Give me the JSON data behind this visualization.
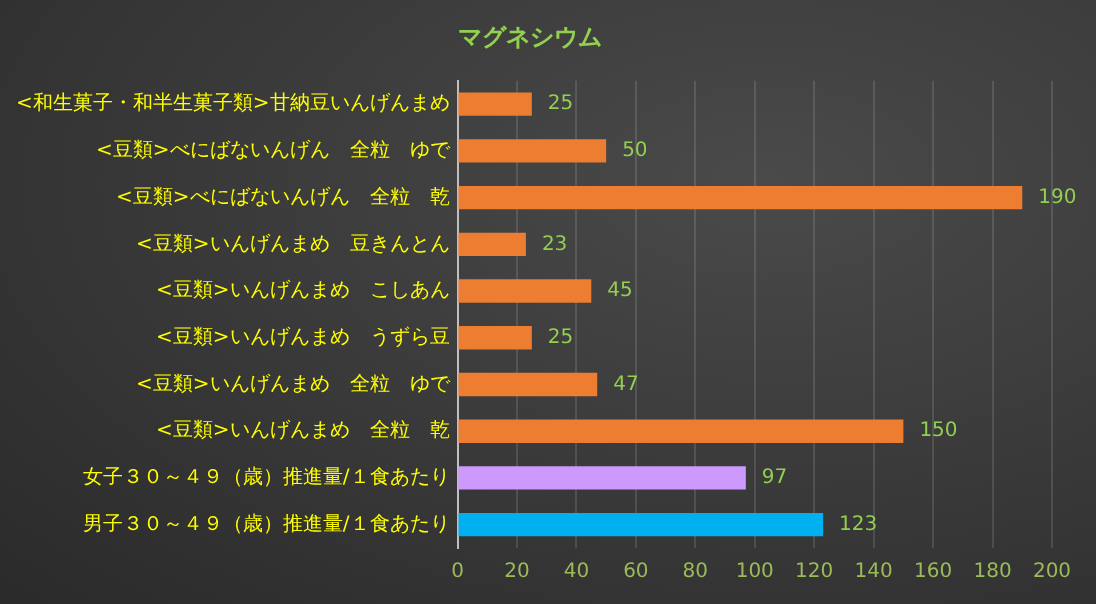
{
  "chart_data": {
    "type": "bar",
    "orientation": "horizontal",
    "title": "マグネシウム",
    "categories": [
      "<和生菓子・和半生菓子類>甘納豆いんげんまめ",
      "<豆類>べにばないんげん　全粒　ゆで",
      "<豆類>べにばないんげん　全粒　乾",
      "<豆類>いんげんまめ　豆きんとん",
      "<豆類>いんげんまめ　こしあん",
      "<豆類>いんげんまめ　うずら豆",
      "<豆類>いんげんまめ　全粒　ゆで",
      "<豆類>いんげんまめ　全粒　乾",
      "女子３０～４９（歳）推進量/１食あたり",
      "男子３０～４９（歳）推進量/１食あたり"
    ],
    "values": [
      25,
      50,
      190,
      23,
      45,
      25,
      47,
      150,
      97,
      123
    ],
    "colors": [
      "#ed7d31",
      "#ed7d31",
      "#ed7d31",
      "#ed7d31",
      "#ed7d31",
      "#ed7d31",
      "#ed7d31",
      "#ed7d31",
      "#cc99ff",
      "#00b0f0"
    ],
    "xlim": [
      0,
      200
    ],
    "xticks": [
      0,
      20,
      40,
      60,
      80,
      100,
      120,
      140,
      160,
      180,
      200
    ],
    "grid": "x",
    "data_labels": true,
    "legend": false
  }
}
